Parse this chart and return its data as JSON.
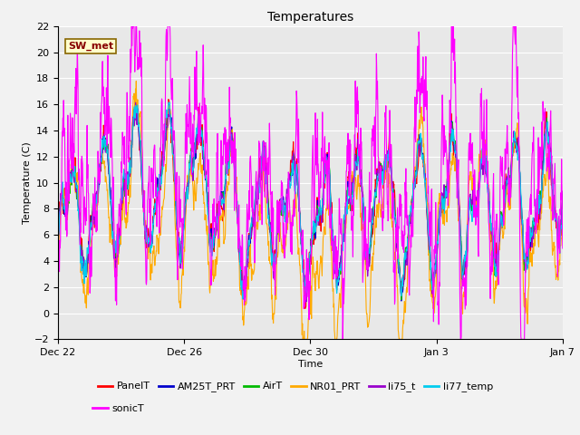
{
  "title": "Temperatures",
  "xlabel": "Time",
  "ylabel": "Temperature (C)",
  "ylim": [
    -2,
    22
  ],
  "yticks": [
    -2,
    0,
    2,
    4,
    6,
    8,
    10,
    12,
    14,
    16,
    18,
    20,
    22
  ],
  "xtick_labels": [
    "Dec 22",
    "Dec 26",
    "Dec 30",
    "Jan 3",
    "Jan 7"
  ],
  "series_names": [
    "PanelT",
    "AM25T_PRT",
    "AirT",
    "NR01_PRT",
    "li75_t",
    "li77_temp",
    "sonicT"
  ],
  "series_colors": [
    "#ff0000",
    "#0000cc",
    "#00bb00",
    "#ffaa00",
    "#9900cc",
    "#00ccee",
    "#ff00ff"
  ],
  "annotation_text": "SW_met",
  "annotation_box_facecolor": "#ffffcc",
  "annotation_box_edgecolor": "#886600",
  "plot_bg_color": "#e8e8e8",
  "fig_bg_color": "#f2f2f2",
  "grid_color": "#ffffff",
  "n_points": 1440,
  "x_start": 0,
  "x_end": 16,
  "xtick_positions": [
    0,
    4,
    8,
    12,
    16
  ],
  "figsize": [
    6.4,
    4.8
  ],
  "dpi": 100,
  "title_fontsize": 10,
  "label_fontsize": 8,
  "tick_fontsize": 8,
  "legend_fontsize": 8,
  "line_width": 0.8
}
